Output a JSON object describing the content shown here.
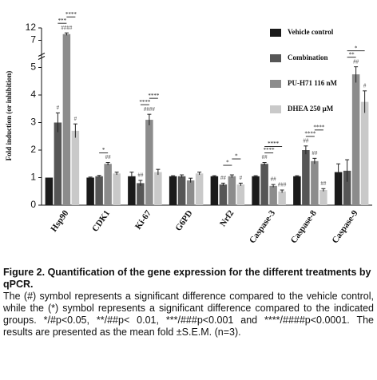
{
  "chart_data": {
    "type": "bar",
    "y_label": "Fold induction (or inhibition)",
    "categories": [
      "Hsp90",
      "CDK1",
      "Ki-67",
      "G6PD",
      "Nrf2",
      "Caspase-3",
      "Caspase-8",
      "Caspase-9"
    ],
    "ylim": [
      0,
      12
    ],
    "yticks": [
      0,
      1,
      2,
      3,
      4,
      5,
      7,
      12
    ],
    "axis_break": [
      5,
      7
    ],
    "series": [
      {
        "name": "Vehicle control",
        "color": "#1a1a1a",
        "values": [
          1,
          1,
          1.05,
          1.05,
          1.05,
          1.05,
          1.05,
          1.2
        ],
        "errors": [
          0,
          0.02,
          0.15,
          0.02,
          0.02,
          0.02,
          0.02,
          0.3
        ],
        "annotations": [
          null,
          null,
          null,
          null,
          null,
          null,
          null,
          null
        ]
      },
      {
        "name": "Combination",
        "color": "#565656",
        "values": [
          3.0,
          1.05,
          0.8,
          1.05,
          0.75,
          1.5,
          2.0,
          1.25
        ],
        "errors": [
          0.35,
          0.03,
          0.1,
          0.05,
          0.05,
          0.05,
          0.15,
          0.4
        ],
        "annotations": [
          "#",
          null,
          "##",
          null,
          "##",
          "##",
          "##",
          null
        ]
      },
      {
        "name": "PU-H71 116 nM",
        "color": "#8c8c8c",
        "values": [
          9.5,
          1.5,
          3.1,
          0.9,
          1.05,
          0.7,
          1.6,
          4.75
        ],
        "errors": [
          0.5,
          0.05,
          0.2,
          0.08,
          0.05,
          0.05,
          0.1,
          0.3
        ],
        "annotations": [
          "####",
          "##",
          "####",
          null,
          null,
          "##",
          "##",
          "##"
        ]
      },
      {
        "name": "DHEA 250 µM",
        "color": "#c9c9c9",
        "values": [
          2.7,
          1.15,
          1.2,
          1.15,
          0.75,
          0.5,
          0.55,
          3.75
        ],
        "errors": [
          0.25,
          0.05,
          0.1,
          0.05,
          0.05,
          0.05,
          0.05,
          0.4
        ],
        "annotations": [
          "#",
          null,
          null,
          null,
          "#",
          "###",
          "##",
          "#"
        ]
      }
    ],
    "brackets": [
      {
        "category": 0,
        "series": [
          1,
          2
        ],
        "label": "***"
      },
      {
        "category": 0,
        "series": [
          2,
          3
        ],
        "label": "****"
      },
      {
        "category": 1,
        "series": [
          1,
          2
        ],
        "label": "*"
      },
      {
        "category": 2,
        "series": [
          1,
          2
        ],
        "label": "****"
      },
      {
        "category": 2,
        "series": [
          2,
          3
        ],
        "label": "****"
      },
      {
        "category": 4,
        "series": [
          1,
          2
        ],
        "label": "*"
      },
      {
        "category": 4,
        "series": [
          2,
          3
        ],
        "label": "*"
      },
      {
        "category": 5,
        "series": [
          1,
          2
        ],
        "label": "****"
      },
      {
        "category": 5,
        "series": [
          1,
          3
        ],
        "label": "****"
      },
      {
        "category": 6,
        "series": [
          1,
          2
        ],
        "label": "****"
      },
      {
        "category": 6,
        "series": [
          2,
          3
        ],
        "label": "****"
      },
      {
        "category": 7,
        "series": [
          1,
          2
        ],
        "label": "**"
      },
      {
        "category": 7,
        "series": [
          1,
          3
        ],
        "label": "*"
      }
    ],
    "legend": "top-right"
  },
  "caption": {
    "title": "Figure 2. Quantification of the gene expression for the different treatments by qPCR.",
    "text": "The (#) symbol represents a significant difference compared to the vehicle control, while the (*) symbol represents a significant difference compared to the indicated groups. */#p<0.05, **/##p< 0.01, ***/###p<0.001 and ****/####p<0.0001. The results are presented as the mean fold ±S.E.M. (n=3)."
  }
}
